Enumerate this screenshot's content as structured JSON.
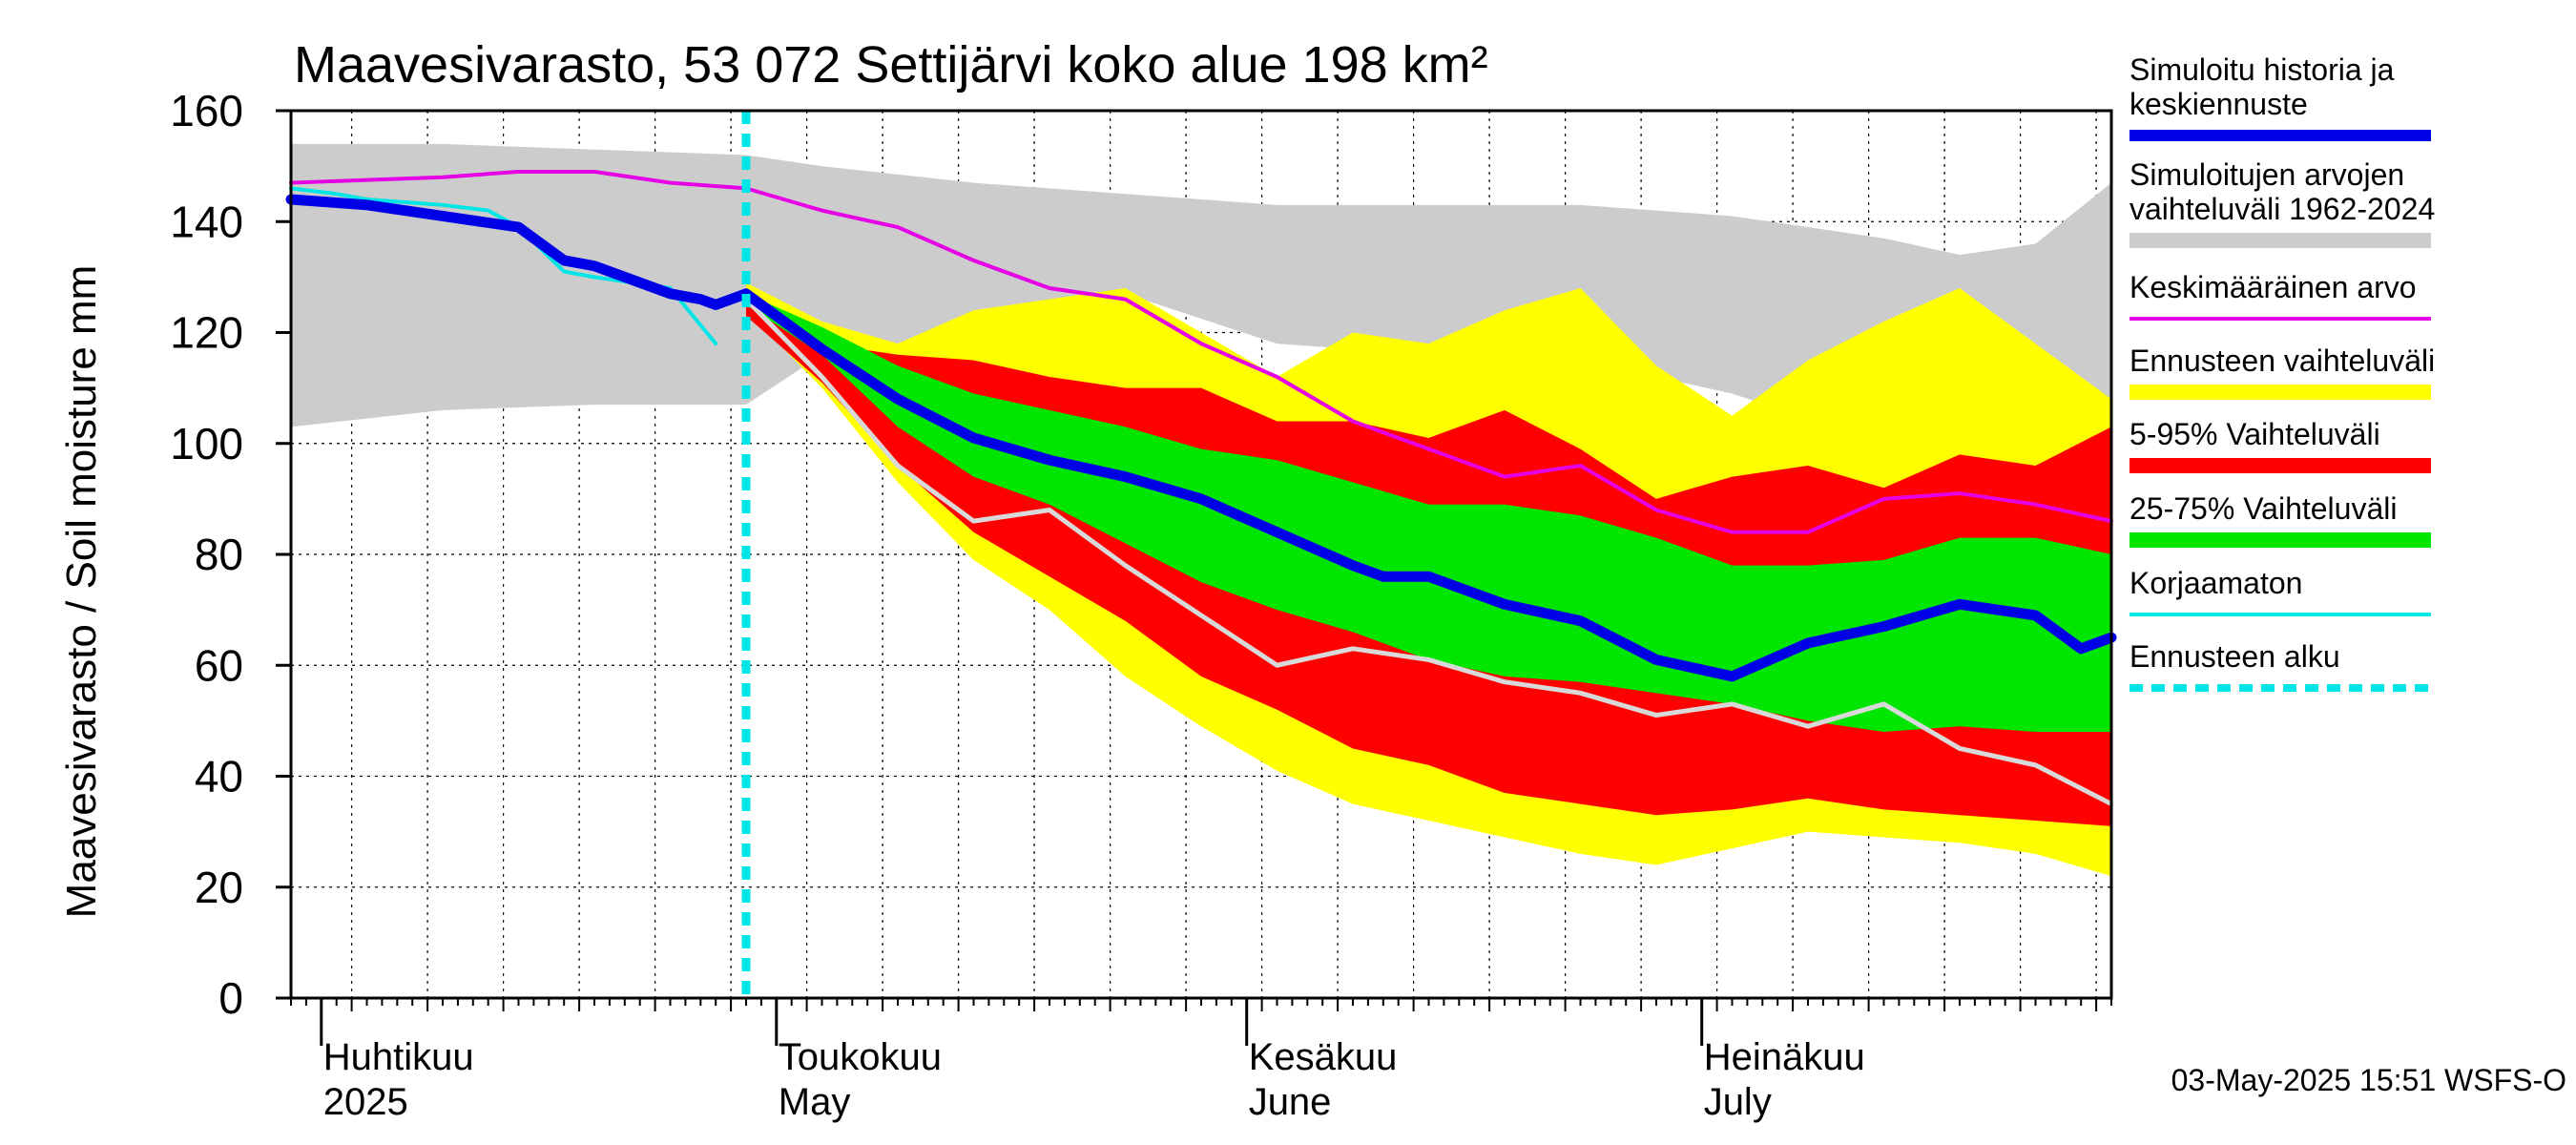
{
  "chart_data": {
    "type": "area",
    "title": "Maavesivarasto, 53 072 Settijärvi koko alue 198 km²",
    "ylabel": "Maavesivarasto / Soil moisture   mm",
    "ylim": [
      0,
      160
    ],
    "yticks": [
      0,
      20,
      40,
      60,
      80,
      100,
      120,
      140,
      160
    ],
    "xlim_days": [
      0,
      120
    ],
    "x_unit": "days since 2025-03-30",
    "forecast_start_day": 30,
    "grid": "dotted",
    "month_labels": [
      {
        "fi": "Huhtikuu",
        "en": "2025",
        "day": 2
      },
      {
        "fi": "Toukokuu",
        "en": "May",
        "day": 32
      },
      {
        "fi": "Kesäkuu",
        "en": "June",
        "day": 63
      },
      {
        "fi": "Heinäkuu",
        "en": "July",
        "day": 93
      }
    ],
    "month_boundaries": [
      2,
      32,
      63,
      93
    ],
    "legend": [
      {
        "label": "Simuloitu historia ja keskiennuste",
        "color": "#0000e6",
        "style": "thick"
      },
      {
        "label": "Simuloitujen arvojen vaihteluväli 1962-2024",
        "color": "#cccccc",
        "style": "band"
      },
      {
        "label": "Keskimääräinen arvo",
        "color": "#e600e6",
        "style": "line"
      },
      {
        "label": "Ennusteen vaihteluväli",
        "color": "#ffff00",
        "style": "band"
      },
      {
        "label": "5-95% Vaihteluväli",
        "color": "#ff0000",
        "style": "band"
      },
      {
        "label": "25-75% Vaihteluväli",
        "color": "#00e600",
        "style": "band"
      },
      {
        "label": "Korjaamaton",
        "color": "#00e6e6",
        "style": "line"
      },
      {
        "label": "Ennusteen alku",
        "color": "#00e6e6",
        "style": "dashed"
      }
    ],
    "series": [
      {
        "name": "Simuloitujen arvojen vaihteluväli 1962-2024",
        "kind": "band",
        "x": [
          0,
          10,
          20,
          30,
          35,
          45,
          55,
          65,
          75,
          85,
          95,
          105,
          110,
          115,
          120
        ],
        "low": [
          103,
          106,
          107,
          107,
          116,
          120,
          127,
          118,
          116,
          115,
          109,
          100,
          97,
          100,
          105
        ],
        "high": [
          154,
          154,
          153,
          152,
          150,
          147,
          145,
          143,
          143,
          143,
          141,
          137,
          134,
          136,
          147
        ]
      },
      {
        "name": "Ennusteen vaihteluväli",
        "kind": "band",
        "x": [
          30,
          35,
          40,
          45,
          50,
          55,
          60,
          65,
          70,
          75,
          80,
          85,
          90,
          95,
          100,
          105,
          110,
          115,
          120
        ],
        "low": [
          124,
          110,
          93,
          79,
          70,
          58,
          49,
          41,
          35,
          32,
          29,
          26,
          24,
          27,
          30,
          29,
          28,
          26,
          22
        ],
        "high": [
          129,
          122,
          118,
          124,
          126,
          128,
          120,
          112,
          120,
          118,
          124,
          128,
          114,
          105,
          115,
          122,
          128,
          118,
          108
        ]
      },
      {
        "name": "5-95% Vaihteluväli",
        "kind": "band",
        "x": [
          30,
          35,
          40,
          45,
          50,
          55,
          60,
          65,
          70,
          75,
          80,
          85,
          90,
          95,
          100,
          105,
          110,
          115,
          120
        ],
        "low": [
          123,
          111,
          96,
          84,
          76,
          68,
          58,
          52,
          45,
          42,
          37,
          35,
          33,
          34,
          36,
          34,
          33,
          32,
          31
        ],
        "high": [
          128,
          118,
          116,
          115,
          112,
          110,
          110,
          104,
          104,
          101,
          106,
          99,
          90,
          94,
          96,
          92,
          98,
          96,
          103
        ]
      },
      {
        "name": "25-75% Vaihteluväli",
        "kind": "band",
        "x": [
          30,
          35,
          40,
          45,
          50,
          55,
          60,
          65,
          70,
          75,
          80,
          85,
          90,
          95,
          100,
          105,
          110,
          115,
          120
        ],
        "low": [
          125,
          116,
          103,
          94,
          89,
          82,
          75,
          70,
          66,
          61,
          58,
          57,
          55,
          53,
          50,
          48,
          49,
          48,
          48
        ],
        "high": [
          127,
          121,
          114,
          109,
          106,
          103,
          99,
          97,
          93,
          89,
          89,
          87,
          83,
          78,
          78,
          79,
          83,
          83,
          80
        ]
      },
      {
        "name": "Korjaamaton (forecast)",
        "kind": "line",
        "color": "#d9d9d9",
        "x": [
          30,
          35,
          40,
          45,
          50,
          55,
          60,
          65,
          70,
          75,
          80,
          85,
          90,
          95,
          100,
          105,
          110,
          115,
          120
        ],
        "values": [
          126,
          112,
          96,
          86,
          88,
          78,
          69,
          60,
          63,
          61,
          57,
          55,
          51,
          53,
          49,
          53,
          45,
          42,
          35
        ]
      },
      {
        "name": "Keskimääräinen arvo",
        "kind": "line",
        "color": "#e600e6",
        "x": [
          0,
          10,
          15,
          20,
          25,
          30,
          35,
          40,
          45,
          50,
          55,
          60,
          65,
          70,
          75,
          80,
          85,
          90,
          95,
          100,
          105,
          110,
          115,
          120
        ],
        "values": [
          147,
          148,
          149,
          149,
          147,
          146,
          142,
          139,
          133,
          128,
          126,
          118,
          112,
          104,
          99,
          94,
          96,
          88,
          84,
          84,
          90,
          91,
          89,
          86
        ]
      },
      {
        "name": "Korjaamaton",
        "kind": "line",
        "color": "#00e6e6",
        "x": [
          0,
          3,
          5,
          10,
          13,
          15,
          18,
          20,
          25,
          28
        ],
        "values": [
          146,
          145,
          144,
          143,
          142,
          139,
          131,
          130,
          128,
          118
        ]
      },
      {
        "name": "Simuloitu historia ja keskiennuste",
        "kind": "line",
        "color": "#0000e6",
        "x": [
          0,
          5,
          10,
          15,
          18,
          20,
          25,
          27,
          28,
          30,
          35,
          40,
          45,
          50,
          55,
          60,
          65,
          70,
          72,
          75,
          80,
          85,
          90,
          95,
          100,
          105,
          110,
          115,
          118,
          120
        ],
        "values": [
          144,
          143,
          141,
          139,
          133,
          132,
          127,
          126,
          125,
          127,
          117,
          108,
          101,
          97,
          94,
          90,
          84,
          78,
          76,
          76,
          71,
          68,
          61,
          58,
          64,
          67,
          71,
          69,
          63,
          65
        ]
      }
    ],
    "footer": "03-May-2025 15:51 WSFS-O"
  }
}
